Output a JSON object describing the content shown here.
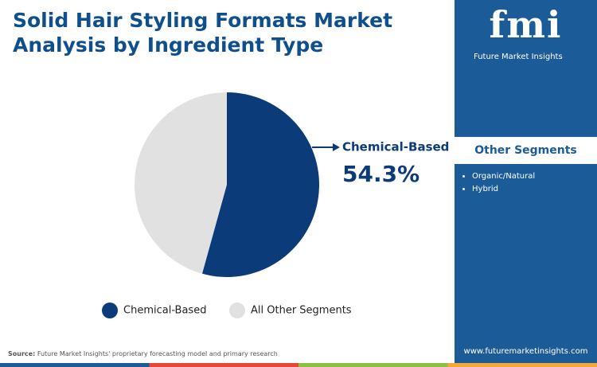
{
  "chart_data": {
    "type": "pie",
    "title": "Solid Hair Styling Formats Market Analysis by Ingredient Type",
    "categories": [
      "Chemical-Based",
      "All Other Segments"
    ],
    "values": [
      54.3,
      45.7
    ],
    "value_labels": [
      "54.3%",
      null
    ],
    "colors": [
      "#0b3b78",
      "#e1e1e1"
    ]
  },
  "side_panel": {
    "brand": {
      "logo": "fmi",
      "name": "Future Market Insights"
    },
    "heading": "Other Segments",
    "items": [
      "Organic/Natural",
      "Hybrid"
    ],
    "website": "www.futuremarketinsights.com"
  },
  "source": {
    "label": "Source:",
    "text": "Future Market Insights' proprietary forecasting model and primary research"
  }
}
